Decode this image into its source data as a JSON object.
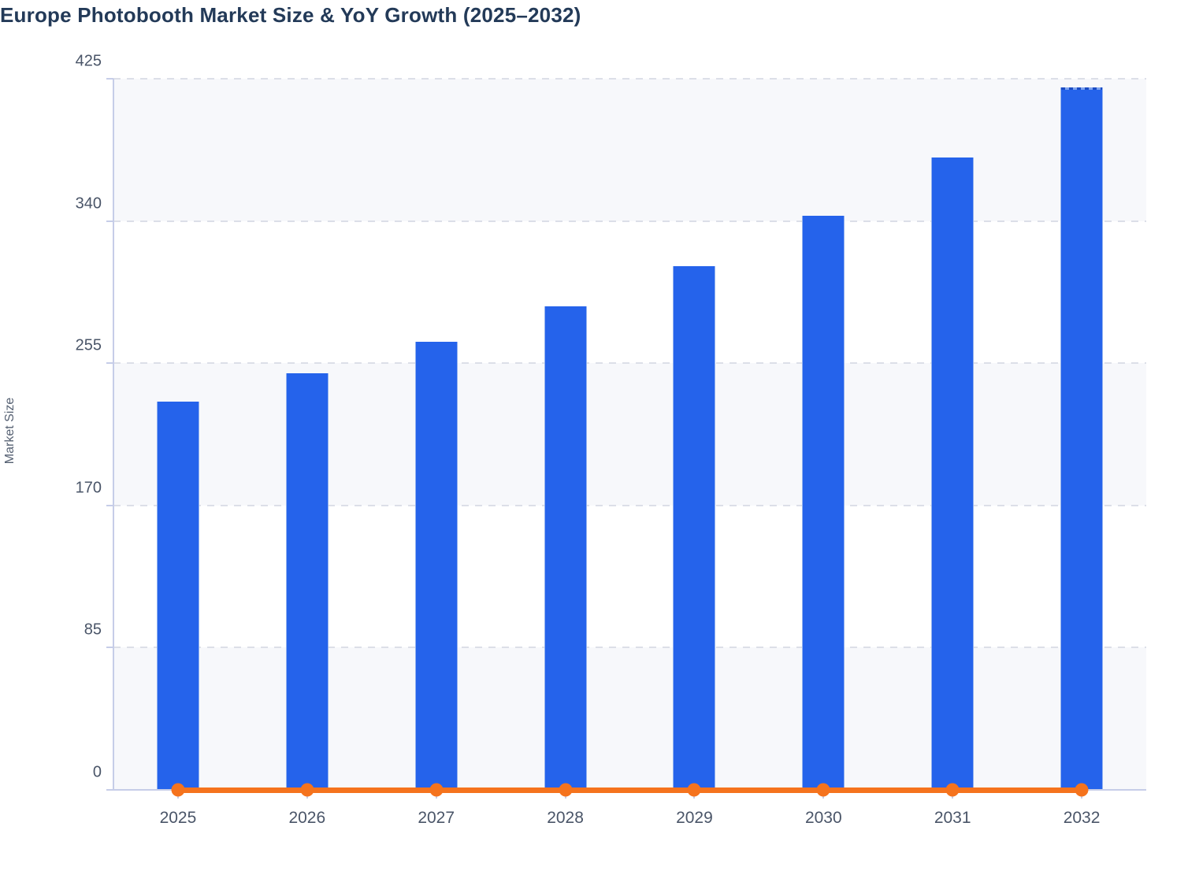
{
  "header": {
    "title": "Europe Photobooth Market Size & YoY Growth (2025–2032)"
  },
  "chart_data": {
    "type": "bar",
    "title": "Europe Photobooth Market Size & YoY Growth (2025–2032)",
    "xlabel": "",
    "ylabel": "Market Size",
    "categories": [
      "2025",
      "2026",
      "2027",
      "2028",
      "2029",
      "2030",
      "2031",
      "2032"
    ],
    "series": [
      {
        "name": "Market Size",
        "type": "bar",
        "color": "#2563eb",
        "values": [
          232,
          249,
          268,
          289,
          313,
          343,
          378,
          420
        ]
      },
      {
        "name": "YoY Growth",
        "type": "line",
        "color": "#f5731d",
        "values": [
          0,
          0,
          0,
          0,
          0,
          0,
          0,
          0
        ]
      }
    ],
    "ylim": [
      0,
      425
    ],
    "yticks": [
      0,
      85,
      170,
      255,
      340,
      425
    ],
    "grid": "horizontal dashed gridlines with alternating light row bands",
    "legend": "none"
  },
  "colors": {
    "bar": "#2563eb",
    "line": "#f5731d",
    "band": "#f7f8fb",
    "grid": "#dcdfe8",
    "axis": "#c6cde8",
    "text": "#4a5568",
    "title": "#233a58",
    "bg": "#ffffff"
  }
}
